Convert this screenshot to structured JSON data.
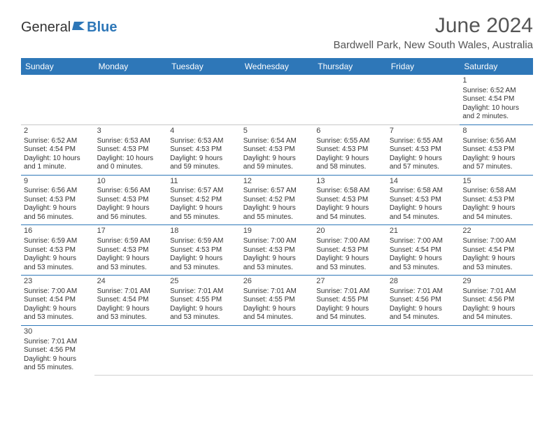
{
  "logo": {
    "text1": "General",
    "text2": "Blue"
  },
  "title": "June 2024",
  "location": "Bardwell Park, New South Wales, Australia",
  "columns": [
    "Sunday",
    "Monday",
    "Tuesday",
    "Wednesday",
    "Thursday",
    "Friday",
    "Saturday"
  ],
  "colors": {
    "header_bg": "#2e77b8",
    "header_text": "#ffffff",
    "border": "#2e77b8",
    "body_bg": "#ffffff",
    "text": "#333333"
  },
  "weeks": [
    [
      null,
      null,
      null,
      null,
      null,
      null,
      {
        "n": "1",
        "sr": "Sunrise: 6:52 AM",
        "ss": "Sunset: 4:54 PM",
        "dl1": "Daylight: 10 hours",
        "dl2": "and 2 minutes."
      }
    ],
    [
      {
        "n": "2",
        "sr": "Sunrise: 6:52 AM",
        "ss": "Sunset: 4:54 PM",
        "dl1": "Daylight: 10 hours",
        "dl2": "and 1 minute."
      },
      {
        "n": "3",
        "sr": "Sunrise: 6:53 AM",
        "ss": "Sunset: 4:53 PM",
        "dl1": "Daylight: 10 hours",
        "dl2": "and 0 minutes."
      },
      {
        "n": "4",
        "sr": "Sunrise: 6:53 AM",
        "ss": "Sunset: 4:53 PM",
        "dl1": "Daylight: 9 hours",
        "dl2": "and 59 minutes."
      },
      {
        "n": "5",
        "sr": "Sunrise: 6:54 AM",
        "ss": "Sunset: 4:53 PM",
        "dl1": "Daylight: 9 hours",
        "dl2": "and 59 minutes."
      },
      {
        "n": "6",
        "sr": "Sunrise: 6:55 AM",
        "ss": "Sunset: 4:53 PM",
        "dl1": "Daylight: 9 hours",
        "dl2": "and 58 minutes."
      },
      {
        "n": "7",
        "sr": "Sunrise: 6:55 AM",
        "ss": "Sunset: 4:53 PM",
        "dl1": "Daylight: 9 hours",
        "dl2": "and 57 minutes."
      },
      {
        "n": "8",
        "sr": "Sunrise: 6:56 AM",
        "ss": "Sunset: 4:53 PM",
        "dl1": "Daylight: 9 hours",
        "dl2": "and 57 minutes."
      }
    ],
    [
      {
        "n": "9",
        "sr": "Sunrise: 6:56 AM",
        "ss": "Sunset: 4:53 PM",
        "dl1": "Daylight: 9 hours",
        "dl2": "and 56 minutes."
      },
      {
        "n": "10",
        "sr": "Sunrise: 6:56 AM",
        "ss": "Sunset: 4:53 PM",
        "dl1": "Daylight: 9 hours",
        "dl2": "and 56 minutes."
      },
      {
        "n": "11",
        "sr": "Sunrise: 6:57 AM",
        "ss": "Sunset: 4:52 PM",
        "dl1": "Daylight: 9 hours",
        "dl2": "and 55 minutes."
      },
      {
        "n": "12",
        "sr": "Sunrise: 6:57 AM",
        "ss": "Sunset: 4:52 PM",
        "dl1": "Daylight: 9 hours",
        "dl2": "and 55 minutes."
      },
      {
        "n": "13",
        "sr": "Sunrise: 6:58 AM",
        "ss": "Sunset: 4:53 PM",
        "dl1": "Daylight: 9 hours",
        "dl2": "and 54 minutes."
      },
      {
        "n": "14",
        "sr": "Sunrise: 6:58 AM",
        "ss": "Sunset: 4:53 PM",
        "dl1": "Daylight: 9 hours",
        "dl2": "and 54 minutes."
      },
      {
        "n": "15",
        "sr": "Sunrise: 6:58 AM",
        "ss": "Sunset: 4:53 PM",
        "dl1": "Daylight: 9 hours",
        "dl2": "and 54 minutes."
      }
    ],
    [
      {
        "n": "16",
        "sr": "Sunrise: 6:59 AM",
        "ss": "Sunset: 4:53 PM",
        "dl1": "Daylight: 9 hours",
        "dl2": "and 53 minutes."
      },
      {
        "n": "17",
        "sr": "Sunrise: 6:59 AM",
        "ss": "Sunset: 4:53 PM",
        "dl1": "Daylight: 9 hours",
        "dl2": "and 53 minutes."
      },
      {
        "n": "18",
        "sr": "Sunrise: 6:59 AM",
        "ss": "Sunset: 4:53 PM",
        "dl1": "Daylight: 9 hours",
        "dl2": "and 53 minutes."
      },
      {
        "n": "19",
        "sr": "Sunrise: 7:00 AM",
        "ss": "Sunset: 4:53 PM",
        "dl1": "Daylight: 9 hours",
        "dl2": "and 53 minutes."
      },
      {
        "n": "20",
        "sr": "Sunrise: 7:00 AM",
        "ss": "Sunset: 4:53 PM",
        "dl1": "Daylight: 9 hours",
        "dl2": "and 53 minutes."
      },
      {
        "n": "21",
        "sr": "Sunrise: 7:00 AM",
        "ss": "Sunset: 4:54 PM",
        "dl1": "Daylight: 9 hours",
        "dl2": "and 53 minutes."
      },
      {
        "n": "22",
        "sr": "Sunrise: 7:00 AM",
        "ss": "Sunset: 4:54 PM",
        "dl1": "Daylight: 9 hours",
        "dl2": "and 53 minutes."
      }
    ],
    [
      {
        "n": "23",
        "sr": "Sunrise: 7:00 AM",
        "ss": "Sunset: 4:54 PM",
        "dl1": "Daylight: 9 hours",
        "dl2": "and 53 minutes."
      },
      {
        "n": "24",
        "sr": "Sunrise: 7:01 AM",
        "ss": "Sunset: 4:54 PM",
        "dl1": "Daylight: 9 hours",
        "dl2": "and 53 minutes."
      },
      {
        "n": "25",
        "sr": "Sunrise: 7:01 AM",
        "ss": "Sunset: 4:55 PM",
        "dl1": "Daylight: 9 hours",
        "dl2": "and 53 minutes."
      },
      {
        "n": "26",
        "sr": "Sunrise: 7:01 AM",
        "ss": "Sunset: 4:55 PM",
        "dl1": "Daylight: 9 hours",
        "dl2": "and 54 minutes."
      },
      {
        "n": "27",
        "sr": "Sunrise: 7:01 AM",
        "ss": "Sunset: 4:55 PM",
        "dl1": "Daylight: 9 hours",
        "dl2": "and 54 minutes."
      },
      {
        "n": "28",
        "sr": "Sunrise: 7:01 AM",
        "ss": "Sunset: 4:56 PM",
        "dl1": "Daylight: 9 hours",
        "dl2": "and 54 minutes."
      },
      {
        "n": "29",
        "sr": "Sunrise: 7:01 AM",
        "ss": "Sunset: 4:56 PM",
        "dl1": "Daylight: 9 hours",
        "dl2": "and 54 minutes."
      }
    ],
    [
      {
        "n": "30",
        "sr": "Sunrise: 7:01 AM",
        "ss": "Sunset: 4:56 PM",
        "dl1": "Daylight: 9 hours",
        "dl2": "and 55 minutes."
      },
      null,
      null,
      null,
      null,
      null,
      null
    ]
  ]
}
